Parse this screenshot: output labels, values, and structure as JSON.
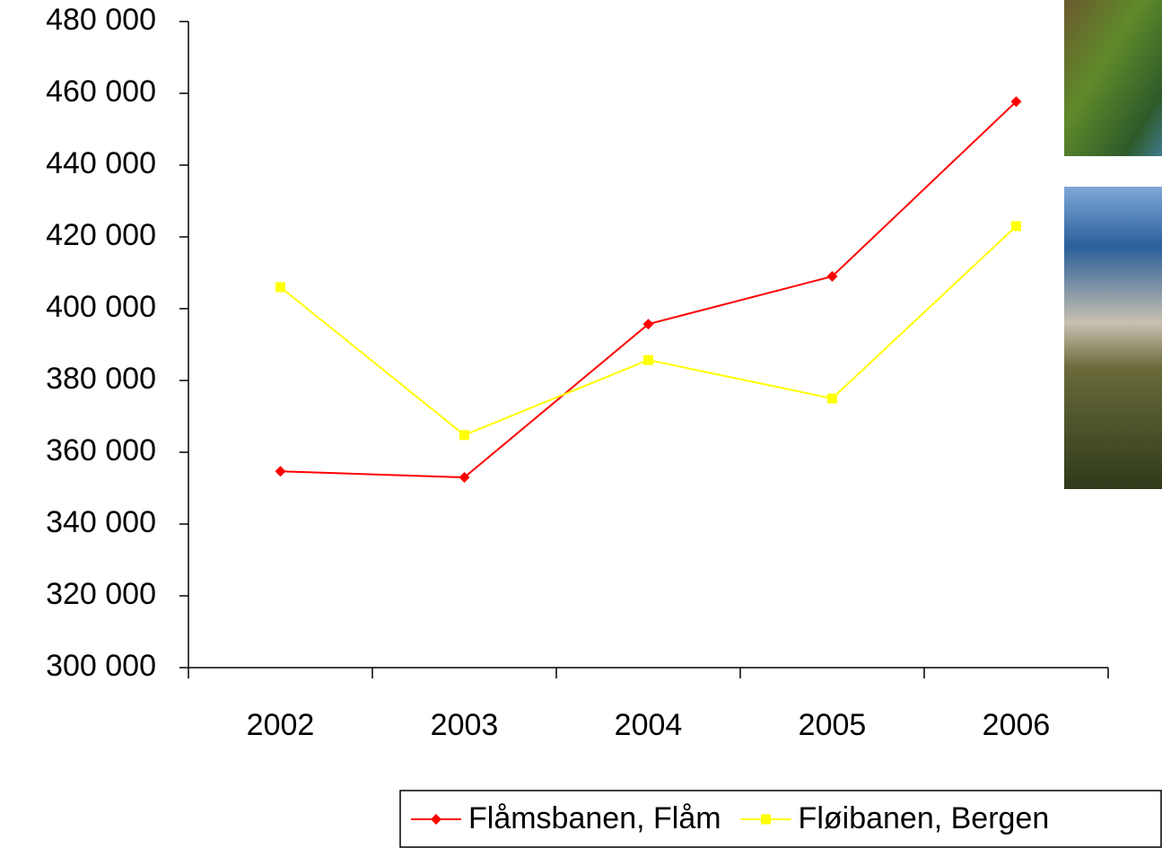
{
  "chart_data": {
    "type": "line",
    "categories": [
      "2002",
      "2003",
      "2004",
      "2005",
      "2006"
    ],
    "series": [
      {
        "name": "Flåmsbanen, Flåm",
        "color": "#ff0000",
        "marker": "diamond",
        "values": [
          354700,
          353000,
          395700,
          409000,
          457700
        ]
      },
      {
        "name": "Fløibanen, Bergen",
        "color": "#ffff00",
        "marker": "square",
        "values": [
          406000,
          364800,
          385700,
          375000,
          423000
        ]
      }
    ],
    "ylim": [
      300000,
      480000
    ],
    "yticks": [
      {
        "value": 300000,
        "label": "300 000"
      },
      {
        "value": 320000,
        "label": "320 000"
      },
      {
        "value": 340000,
        "label": "340 000"
      },
      {
        "value": 360000,
        "label": "360 000"
      },
      {
        "value": 380000,
        "label": "380 000"
      },
      {
        "value": 400000,
        "label": "400 000"
      },
      {
        "value": 420000,
        "label": "420 000"
      },
      {
        "value": 440000,
        "label": "440 000"
      },
      {
        "value": 460000,
        "label": "460 000"
      },
      {
        "value": 480000,
        "label": "480 000"
      }
    ],
    "grid": false,
    "legend": "bottom-right"
  }
}
